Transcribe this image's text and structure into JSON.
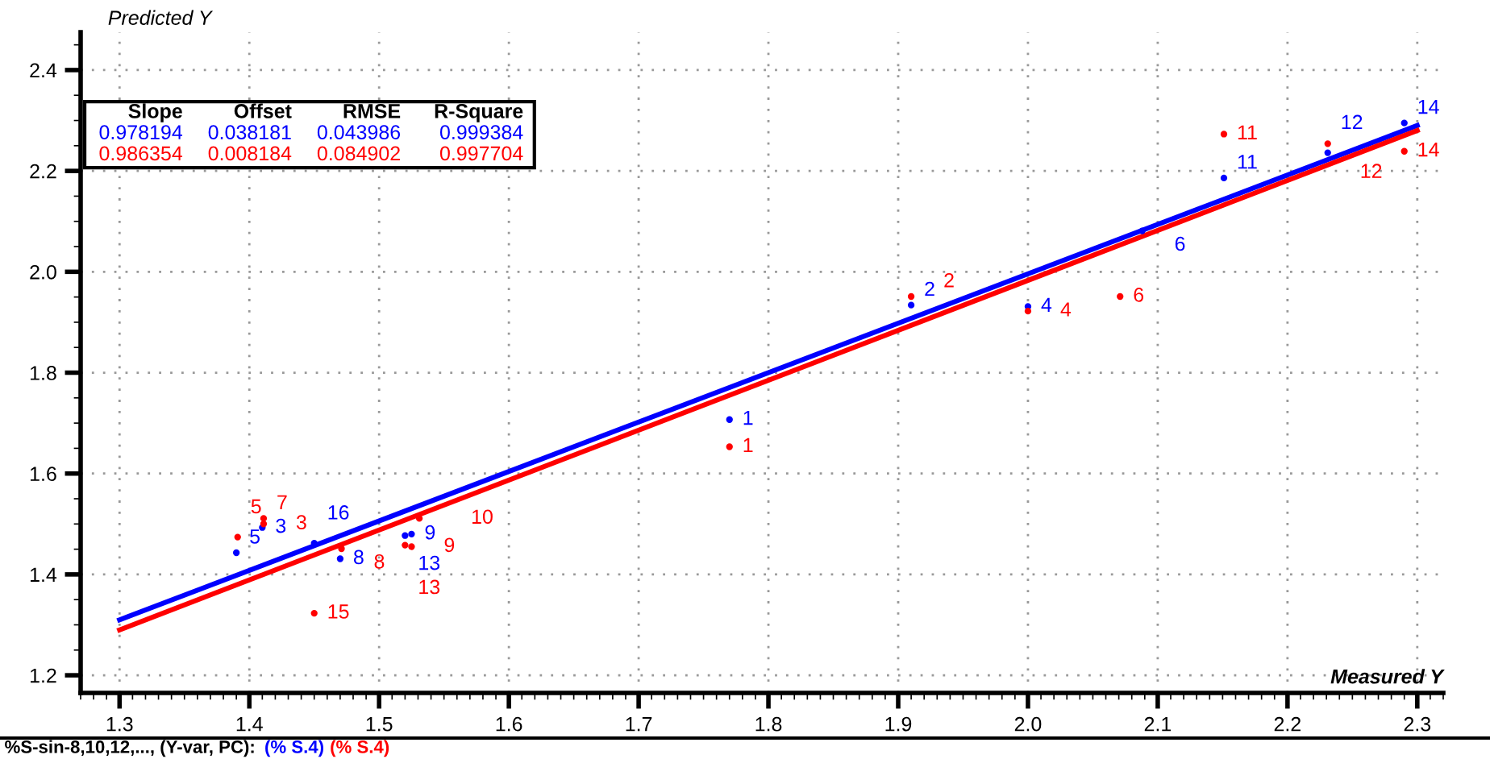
{
  "chart_data": {
    "type": "scatter",
    "xlabel": "Measured Y",
    "ylabel": "Predicted Y",
    "xlim": [
      1.27,
      2.32
    ],
    "ylim": [
      1.165,
      2.475
    ],
    "xticks": [
      {
        "value": 1.3,
        "label": "1.3"
      },
      {
        "value": 1.4,
        "label": "1.4"
      },
      {
        "value": 1.5,
        "label": "1.5"
      },
      {
        "value": 1.6,
        "label": "1.6"
      },
      {
        "value": 1.7,
        "label": "1.7"
      },
      {
        "value": 1.8,
        "label": "1.8"
      },
      {
        "value": 1.9,
        "label": "1.9"
      },
      {
        "value": 2.0,
        "label": "2.0"
      },
      {
        "value": 2.1,
        "label": "2.1"
      },
      {
        "value": 2.2,
        "label": "2.2"
      },
      {
        "value": 2.3,
        "label": "2.3"
      }
    ],
    "yticks": [
      {
        "value": 1.2,
        "label": "1.2"
      },
      {
        "value": 1.4,
        "label": "1.4"
      },
      {
        "value": 1.6,
        "label": "1.6"
      },
      {
        "value": 1.8,
        "label": "1.8"
      },
      {
        "value": 2.0,
        "label": "2.0"
      },
      {
        "value": 2.2,
        "label": "2.2"
      },
      {
        "value": 2.4,
        "label": "2.4"
      }
    ],
    "grid": true,
    "marker": "circle",
    "series": [
      {
        "color": "#0000ff",
        "x": [
          1.77,
          1.91,
          1.41,
          2.0,
          1.39,
          2.088,
          1.47,
          1.525,
          2.151,
          2.231,
          1.52,
          2.29,
          1.45
        ],
        "values": [
          1.707,
          1.934,
          1.493,
          1.931,
          1.443,
          2.081,
          1.431,
          1.48,
          2.186,
          2.236,
          1.477,
          2.295,
          1.462
        ]
      },
      {
        "color": "#ff0000",
        "x": [
          1.77,
          1.91,
          1.411,
          2.0,
          1.391,
          2.071,
          1.411,
          1.471,
          1.525,
          1.531,
          2.151,
          2.231,
          1.52,
          2.29,
          1.45
        ],
        "values": [
          1.653,
          1.951,
          1.5,
          1.922,
          1.474,
          1.951,
          1.511,
          1.451,
          1.455,
          1.511,
          2.273,
          2.254,
          1.458,
          2.239,
          1.323
        ]
      },
      {
        "type": "line",
        "marker": "none",
        "color": "#0000ff",
        "x": [
          1.3,
          2.3
        ],
        "values": [
          1.31,
          2.29
        ]
      },
      {
        "type": "line",
        "marker": "none",
        "color": "#ff0000",
        "x": [
          1.3,
          2.3
        ],
        "values": [
          1.29,
          2.28
        ]
      }
    ],
    "annotations": [
      "Slope",
      "Offset",
      "RMSE",
      "R-Square",
      "0.978194",
      "0.038181",
      "0.043986",
      "0.999384",
      "0.986354",
      "0.008184",
      "0.084902",
      "0.997704",
      "%S-sin-8,10,12,..., (Y-var, PC): ",
      "(% S.4)",
      "(% S.4)",
      {
        "text": "1",
        "x": 1.77,
        "y": 1.707
      },
      {
        "text": "2",
        "x": 1.91,
        "y": 1.934
      },
      {
        "text": "3",
        "x": 1.41,
        "y": 1.493
      },
      {
        "text": "4",
        "x": 2.0,
        "y": 1.931
      },
      {
        "text": "5",
        "x": 1.39,
        "y": 1.443
      },
      {
        "text": "6",
        "x": 2.088,
        "y": 2.081
      },
      {
        "text": "8",
        "x": 1.47,
        "y": 1.431
      },
      {
        "text": "9",
        "x": 1.525,
        "y": 1.48
      },
      {
        "text": "11",
        "x": 2.151,
        "y": 2.186
      },
      {
        "text": "12",
        "x": 2.231,
        "y": 2.236
      },
      {
        "text": "13",
        "x": 1.52,
        "y": 1.477
      },
      {
        "text": "14",
        "x": 2.29,
        "y": 2.295
      },
      {
        "text": "16",
        "x": 1.45,
        "y": 1.462
      },
      {
        "text": "1",
        "x": 1.77,
        "y": 1.653
      },
      {
        "text": "2",
        "x": 1.91,
        "y": 1.951
      },
      {
        "text": "3",
        "x": 1.411,
        "y": 1.5
      },
      {
        "text": "4",
        "x": 2.0,
        "y": 1.922
      },
      {
        "text": "5",
        "x": 1.391,
        "y": 1.474
      },
      {
        "text": "6",
        "x": 2.071,
        "y": 1.951
      },
      {
        "text": "7",
        "x": 1.411,
        "y": 1.511
      },
      {
        "text": "8",
        "x": 1.471,
        "y": 1.451
      },
      {
        "text": "9",
        "x": 1.525,
        "y": 1.455
      },
      {
        "text": "10",
        "x": 1.531,
        "y": 1.511
      },
      {
        "text": "11",
        "x": 2.151,
        "y": 2.273
      },
      {
        "text": "12",
        "x": 2.231,
        "y": 2.254
      },
      {
        "text": "13",
        "x": 1.52,
        "y": 1.458
      },
      {
        "text": "14",
        "x": 2.29,
        "y": 2.239
      },
      {
        "text": "15",
        "x": 1.45,
        "y": 1.323
      }
    ]
  }
}
